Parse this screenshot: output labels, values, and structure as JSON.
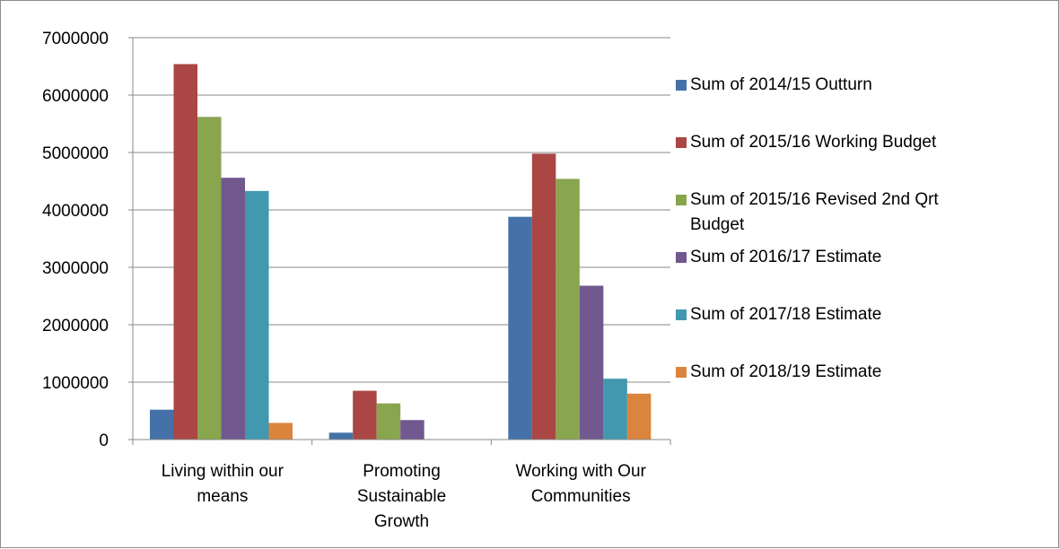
{
  "chart_data": {
    "type": "bar",
    "categories": [
      "Living within our means",
      "Promoting Sustainable Growth",
      "Working with Our Communities"
    ],
    "category_label_lines": [
      [
        "Living within our",
        "means"
      ],
      [
        "Promoting",
        "Sustainable",
        "Growth"
      ],
      [
        "Working with Our",
        "Communities"
      ]
    ],
    "series": [
      {
        "name": "Sum of 2014/15 Outturn",
        "color": "#4472A8",
        "values": [
          520000,
          120000,
          3880000
        ]
      },
      {
        "name": "Sum of 2015/16 Working Budget",
        "color": "#AA4643",
        "values": [
          6540000,
          850000,
          4980000
        ]
      },
      {
        "name": "Sum of 2015/16 Revised 2nd Qrt Budget",
        "color": "#89A54E",
        "values": [
          5620000,
          630000,
          4540000
        ]
      },
      {
        "name": "Sum of 2016/17  Estimate",
        "color": "#71588F",
        "values": [
          4560000,
          340000,
          2680000
        ]
      },
      {
        "name": "Sum of 2017/18  Estimate",
        "color": "#4198AF",
        "values": [
          4330000,
          0,
          1060000
        ]
      },
      {
        "name": "Sum of 2018/19  Estimate",
        "color": "#DB843D",
        "values": [
          290000,
          0,
          800000
        ]
      }
    ],
    "legend_label_lines": [
      [
        "Sum of 2014/15 Outturn"
      ],
      [
        "Sum of 2015/16 Working Budget"
      ],
      [
        "Sum of 2015/16 Revised 2nd Qrt",
        "Budget"
      ],
      [
        "Sum of 2016/17  Estimate"
      ],
      [
        "Sum of 2017/18  Estimate"
      ],
      [
        "Sum of 2018/19  Estimate"
      ]
    ],
    "y_ticks": [
      "0",
      "1000000",
      "2000000",
      "3000000",
      "4000000",
      "5000000",
      "6000000",
      "7000000"
    ],
    "ylim": [
      0,
      7000000
    ],
    "title": "",
    "xlabel": "",
    "ylabel": "",
    "grid": true,
    "legend_position": "right"
  }
}
